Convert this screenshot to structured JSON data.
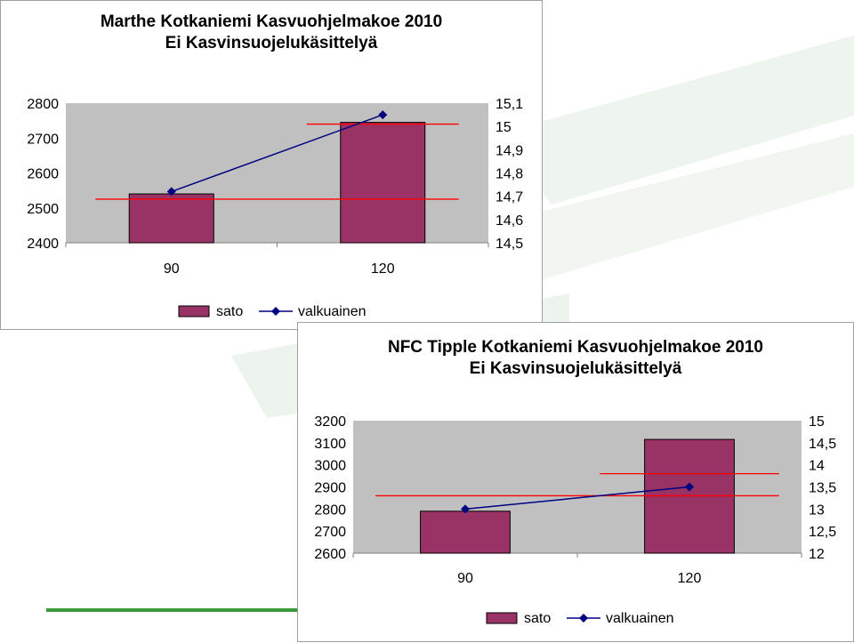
{
  "colors": {
    "bar": "#993366",
    "line": "#000080",
    "reference_line": "#ff0000",
    "plot_area": "#c0c0c0",
    "background_accent": "#e8f1e8",
    "footer_bar": "#3a9a3a"
  },
  "chart_data": [
    {
      "type": "bar",
      "title": "Marthe Kotkaniemi Kasvuohjelmakoe 2010",
      "subtitle": "Ei Kasvinsuojelukäsittelyä",
      "categories": [
        "90",
        "120"
      ],
      "series": [
        {
          "name": "sato",
          "type": "bar",
          "axis": "left",
          "values": [
            2540,
            2745
          ]
        },
        {
          "name": "valkuainen",
          "type": "line",
          "axis": "right",
          "values": [
            14.72,
            15.05
          ]
        }
      ],
      "reference_lines": [
        {
          "axis": "left",
          "value": 2525,
          "from": 0,
          "to": 1
        },
        {
          "axis": "left",
          "value": 2740,
          "from": 1,
          "to": 1
        }
      ],
      "ylim_left": [
        2400,
        2800
      ],
      "ylim_right": [
        14.5,
        15.1
      ],
      "yticks_left": [
        "2800",
        "2700",
        "2600",
        "2500",
        "2400"
      ],
      "yticks_right": [
        "15,1",
        "15",
        "14,9",
        "14,8",
        "14,7",
        "14,6",
        "14,5"
      ],
      "legend": "bottom",
      "grid": false
    },
    {
      "type": "bar",
      "title": "NFC Tipple Kotkaniemi Kasvuohjelmakoe 2010",
      "subtitle": "Ei Kasvinsuojelukäsittelyä",
      "categories": [
        "90",
        "120"
      ],
      "series": [
        {
          "name": "sato",
          "type": "bar",
          "axis": "left",
          "values": [
            2790,
            3115
          ]
        },
        {
          "name": "valkuainen",
          "type": "line",
          "axis": "right",
          "values": [
            13.0,
            13.5
          ]
        }
      ],
      "reference_lines": [
        {
          "axis": "left",
          "value": 2860,
          "from": 0,
          "to": 1
        },
        {
          "axis": "left",
          "value": 2960,
          "from": 1,
          "to": 1
        }
      ],
      "ylim_left": [
        2600,
        3200
      ],
      "ylim_right": [
        12,
        15
      ],
      "yticks_left": [
        "3200",
        "3100",
        "3000",
        "2900",
        "2800",
        "2700",
        "2600"
      ],
      "yticks_right": [
        "15",
        "14,5",
        "14",
        "13,5",
        "13",
        "12,5",
        "12"
      ],
      "legend": "bottom",
      "grid": false
    }
  ]
}
